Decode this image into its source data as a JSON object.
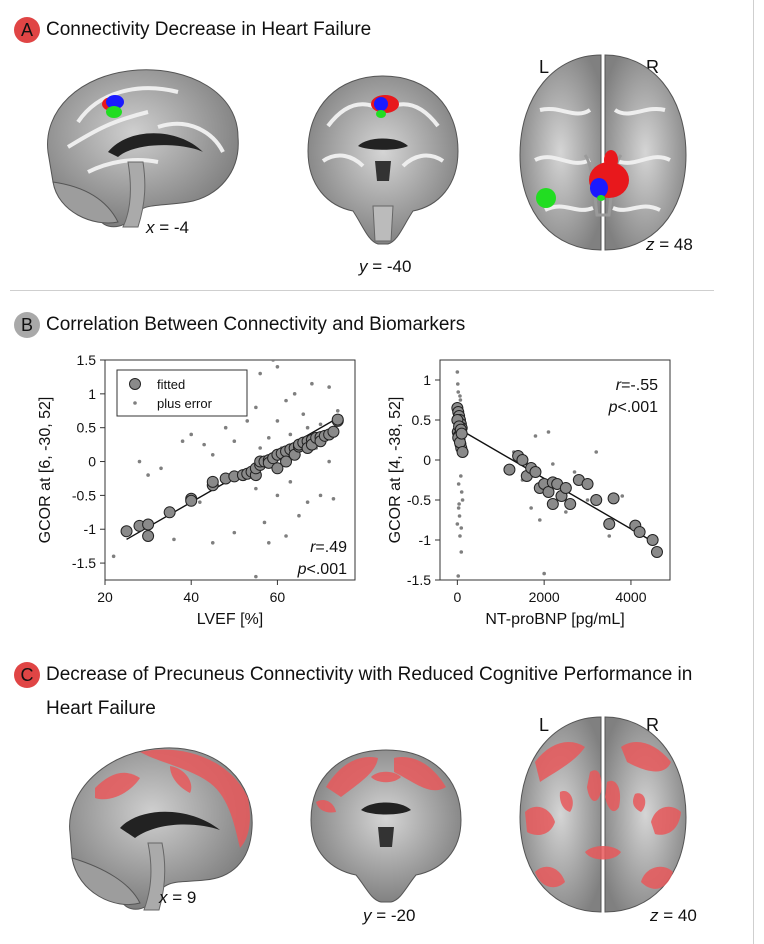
{
  "panel_a": {
    "letter": "A",
    "title": "Connectivity Decrease in Heart Failure",
    "coords": [
      {
        "axis": "x",
        "value": "= -4"
      },
      {
        "axis": "y",
        "value": "= -40"
      },
      {
        "axis": "z",
        "value": "= 48"
      }
    ],
    "left_label": "L",
    "right_label": "R"
  },
  "panel_b": {
    "letter": "B",
    "title": "Correlation Between Connectivity and Biomarkers"
  },
  "panel_c": {
    "letter": "C",
    "title_line1": "Decrease of Precuneus Connectivity with Reduced Cognitive Performance in",
    "title_line2": "Heart Failure",
    "coords": [
      {
        "axis": "x",
        "value": "= 9"
      },
      {
        "axis": "y",
        "value": "= -20"
      },
      {
        "axis": "z",
        "value": "= 40"
      }
    ],
    "left_label": "L",
    "right_label": "R"
  },
  "colors": {
    "red_cluster": "#e8181c",
    "blue_cluster": "#1a1aff",
    "green_cluster": "#22dd22",
    "pink_overlay": "#e8585a",
    "badge_red": "#e04545",
    "badge_gray": "#a9a9a9",
    "marker_fill": "#8a8a8a",
    "error_point": "#7f7f7f"
  },
  "chart_data": [
    {
      "type": "scatter",
      "xlabel": "LVEF [%]",
      "ylabel": "GCOR at [6, -30, 52]",
      "xlim": [
        20,
        78
      ],
      "ylim": [
        -1.75,
        1.5
      ],
      "xticks": [
        20,
        40,
        60
      ],
      "yticks": [
        1.5,
        1,
        0.5,
        0,
        -0.5,
        -1,
        -1.5
      ],
      "ytick_labels": [
        "1.5",
        "1",
        "0.5",
        "0",
        "-0.5",
        "-1",
        "-1.5"
      ],
      "legend": {
        "position": "top-left",
        "entries": [
          "fitted",
          "plus error"
        ]
      },
      "stat_r": ".49",
      "stat_p": "<.001",
      "regression": {
        "x": [
          25,
          75
        ],
        "y": [
          -1.15,
          0.68
        ]
      },
      "fitted": {
        "x": [
          25,
          28,
          30,
          30,
          35,
          40,
          40,
          45,
          45,
          48,
          50,
          52,
          53,
          54,
          55,
          55,
          56,
          56,
          57,
          58,
          58,
          59,
          60,
          60,
          61,
          62,
          62,
          63,
          64,
          64,
          65,
          65,
          66,
          67,
          67,
          68,
          68,
          69,
          70,
          70,
          71,
          72,
          73,
          74,
          74
        ],
        "y": [
          -1.03,
          -0.95,
          -0.93,
          -1.1,
          -0.75,
          -0.55,
          -0.58,
          -0.35,
          -0.3,
          -0.25,
          -0.22,
          -0.2,
          -0.18,
          -0.15,
          -0.2,
          -0.1,
          -0.05,
          0.0,
          0.0,
          0.02,
          -0.02,
          0.05,
          0.1,
          -0.1,
          0.12,
          0.15,
          0.0,
          0.18,
          0.2,
          0.1,
          0.22,
          0.25,
          0.28,
          0.3,
          0.2,
          0.32,
          0.25,
          0.35,
          0.36,
          0.3,
          0.38,
          0.4,
          0.44,
          0.6,
          0.62
        ]
      },
      "plus_error": {
        "x": [
          22,
          28,
          30,
          33,
          36,
          38,
          40,
          42,
          43,
          45,
          45,
          48,
          50,
          50,
          52,
          53,
          55,
          55,
          55,
          56,
          56,
          57,
          58,
          58,
          59,
          60,
          60,
          60,
          61,
          62,
          62,
          63,
          63,
          64,
          65,
          65,
          66,
          67,
          67,
          68,
          69,
          70,
          70,
          71,
          72,
          72,
          73,
          74
        ],
        "y": [
          -1.4,
          0.0,
          -0.2,
          -0.1,
          -1.15,
          0.3,
          0.4,
          -0.6,
          0.25,
          0.1,
          -1.2,
          0.5,
          0.3,
          -1.05,
          -0.2,
          0.6,
          0.8,
          -0.4,
          -1.7,
          0.2,
          1.3,
          -0.9,
          0.35,
          -1.2,
          1.5,
          0.6,
          -0.5,
          1.4,
          0.2,
          0.9,
          -1.1,
          0.4,
          -0.3,
          1.0,
          0.1,
          -0.8,
          0.7,
          0.5,
          -0.6,
          1.15,
          0.2,
          0.55,
          -0.5,
          0.35,
          1.1,
          0.0,
          -0.55,
          0.75
        ]
      }
    },
    {
      "type": "scatter",
      "xlabel": "NT-proBNP [pg/mL]",
      "ylabel": "GCOR at [4, -38, 52]",
      "xlim": [
        -400,
        4900
      ],
      "ylim": [
        -1.5,
        1.25
      ],
      "xticks": [
        0,
        2000,
        4000
      ],
      "yticks": [
        1,
        0.5,
        0,
        -0.5,
        -1,
        -1.5
      ],
      "ytick_labels": [
        "1",
        "0.5",
        "0",
        "-0.5",
        "-1",
        "-1.5"
      ],
      "stat_r": "-.55",
      "stat_p": "<.001",
      "regression": {
        "x": [
          0,
          4600
        ],
        "y": [
          0.4,
          -1.05
        ]
      },
      "fitted": {
        "x": [
          0,
          20,
          40,
          60,
          80,
          100,
          10,
          30,
          50,
          70,
          90,
          0,
          40,
          80,
          20,
          60,
          100,
          120,
          1200,
          1400,
          1500,
          1600,
          1700,
          1800,
          1900,
          2000,
          2100,
          2200,
          2200,
          2300,
          2400,
          2500,
          2600,
          2800,
          3000,
          3200,
          3500,
          3600,
          4100,
          4200,
          4500,
          4600
        ],
        "y": [
          0.65,
          0.6,
          0.55,
          0.5,
          0.45,
          0.4,
          0.35,
          0.3,
          0.25,
          0.2,
          0.15,
          0.5,
          0.42,
          0.38,
          0.28,
          0.22,
          0.33,
          0.1,
          -0.12,
          0.05,
          0.0,
          -0.2,
          -0.1,
          -0.15,
          -0.35,
          -0.3,
          -0.4,
          -0.28,
          -0.55,
          -0.3,
          -0.45,
          -0.35,
          -0.55,
          -0.25,
          -0.3,
          -0.5,
          -0.8,
          -0.48,
          -0.82,
          -0.9,
          -1.0,
          -1.15
        ]
      },
      "plus_error": {
        "x": [
          0,
          0,
          10,
          20,
          30,
          40,
          50,
          60,
          70,
          80,
          90,
          100,
          110,
          120,
          0,
          30,
          60,
          90,
          120,
          20,
          1300,
          1500,
          1700,
          1800,
          1900,
          2000,
          2100,
          2200,
          2300,
          2500,
          2700,
          3000,
          3200,
          3500,
          3800
        ],
        "y": [
          1.3,
          1.1,
          0.95,
          0.85,
          -0.3,
          -0.55,
          -0.7,
          -0.95,
          0.75,
          -0.2,
          -1.15,
          -0.4,
          0.6,
          -0.5,
          -0.8,
          -0.6,
          0.8,
          -0.85,
          0.2,
          -1.45,
          0.1,
          -0.25,
          -0.6,
          0.3,
          -0.75,
          -1.42,
          0.35,
          -0.05,
          -0.45,
          -0.65,
          -0.15,
          -0.5,
          0.1,
          -0.95,
          -0.45
        ]
      }
    }
  ]
}
